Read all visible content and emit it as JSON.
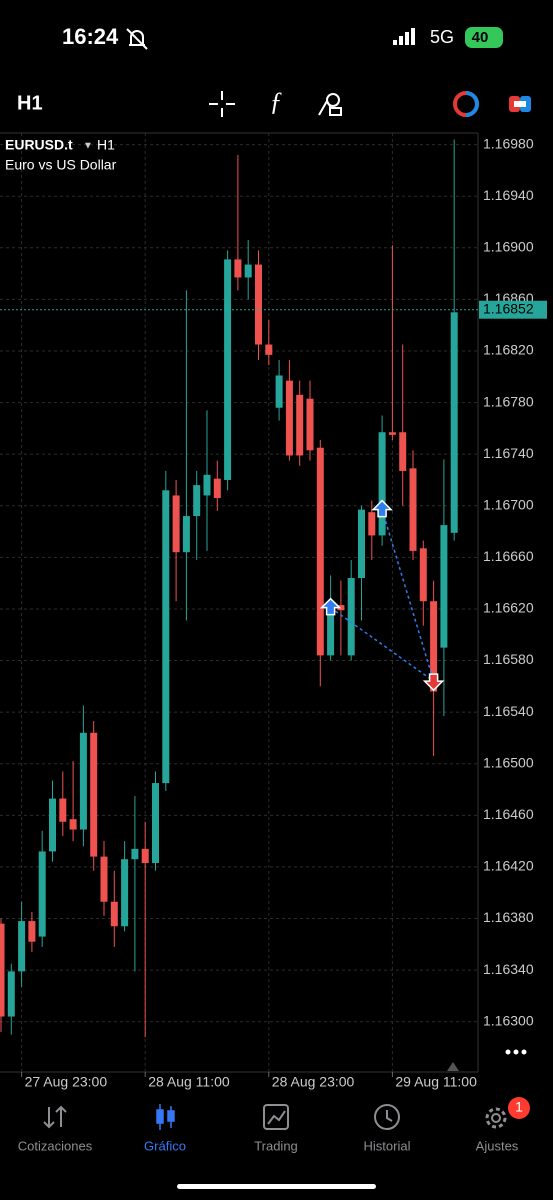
{
  "status_bar": {
    "time": "16:24",
    "network": "5G",
    "battery": "40"
  },
  "toolbar": {
    "timeframe": "H1"
  },
  "chart_data": {
    "type": "candlestick",
    "symbol": "EURUSD.t",
    "timeframe": "H1",
    "description": "Euro vs US Dollar",
    "categories": [
      null,
      null,
      "27 Aug 23:00",
      null,
      null,
      null,
      null,
      null,
      null,
      null,
      null,
      null,
      null,
      null,
      "28 Aug 11:00",
      null,
      null,
      null,
      null,
      null,
      null,
      null,
      null,
      null,
      null,
      null,
      "28 Aug 23:00",
      null,
      null,
      null,
      null,
      null,
      null,
      null,
      null,
      null,
      null,
      null,
      "29 Aug 11:00",
      null,
      null,
      null,
      null,
      null,
      null
    ],
    "open": [
      1.16376,
      1.16304,
      1.16339,
      1.16378,
      1.16366,
      1.16432,
      1.16473,
      1.16457,
      1.16449,
      1.16524,
      1.16428,
      1.16393,
      1.16374,
      1.16426,
      1.16434,
      1.16423,
      1.16485,
      1.16708,
      1.16664,
      1.16692,
      1.16708,
      1.16721,
      1.1672,
      1.16891,
      1.16877,
      1.16887,
      1.16825,
      1.16776,
      1.16797,
      1.16786,
      1.16783,
      1.16745,
      1.16584,
      1.16623,
      1.16584,
      1.16644,
      1.16695,
      1.16677,
      1.16757,
      1.16757,
      1.16729,
      1.16667,
      1.16626,
      1.1659,
      1.16679
    ],
    "high": [
      1.1638,
      1.16345,
      1.16393,
      1.16385,
      1.16448,
      1.16487,
      1.16494,
      1.16502,
      1.16545,
      1.16533,
      1.1644,
      1.16417,
      1.1644,
      1.16475,
      1.16455,
      1.16494,
      1.16727,
      1.1672,
      1.16867,
      1.16727,
      1.16774,
      1.16735,
      1.16898,
      1.16972,
      1.16906,
      1.16898,
      1.16844,
      1.16813,
      1.16813,
      1.16797,
      1.16797,
      1.16751,
      1.16646,
      1.16642,
      1.16658,
      1.167,
      1.16704,
      1.1677,
      1.16902,
      1.16825,
      1.16743,
      1.16673,
      1.16642,
      1.16736,
      1.16984
    ],
    "low": [
      1.16292,
      1.1629,
      1.16327,
      1.16354,
      1.16358,
      1.16424,
      1.16444,
      1.1644,
      1.16436,
      1.16417,
      1.16382,
      1.16358,
      1.1637,
      1.16339,
      1.16288,
      1.16417,
      1.16479,
      1.16626,
      1.16611,
      1.16658,
      1.16665,
      1.16696,
      1.16712,
      1.16867,
      1.1686,
      1.16813,
      1.16809,
      1.16766,
      1.16735,
      1.16731,
      1.16735,
      1.1656,
      1.1658,
      1.16584,
      1.1658,
      1.16611,
      1.16658,
      1.16669,
      1.16751,
      1.167,
      1.16658,
      1.16607,
      1.16506,
      1.16537,
      1.16673
    ],
    "close": [
      1.16304,
      1.16339,
      1.16378,
      1.16362,
      1.16432,
      1.16473,
      1.16455,
      1.16449,
      1.16524,
      1.16428,
      1.16393,
      1.16374,
      1.16426,
      1.16434,
      1.16423,
      1.16485,
      1.16712,
      1.16664,
      1.16692,
      1.16716,
      1.16724,
      1.16706,
      1.16891,
      1.16877,
      1.16887,
      1.16825,
      1.16817,
      1.16801,
      1.16739,
      1.16739,
      1.16743,
      1.16584,
      1.16623,
      1.16619,
      1.16644,
      1.16697,
      1.16677,
      1.16757,
      1.16755,
      1.16727,
      1.16665,
      1.16626,
      1.16556,
      1.16685,
      1.1685
    ],
    "up_color": "#26a69a",
    "down_color": "#ef5350",
    "ylim": [
      1.16261,
      1.16989
    ],
    "yticks": [
      {
        "value": 1.1698,
        "label": "1.16980"
      },
      {
        "value": 1.1694,
        "label": "1.16940"
      },
      {
        "value": 1.169,
        "label": "1.16900"
      },
      {
        "value": 1.1686,
        "label": "1.16860"
      },
      {
        "value": 1.1682,
        "label": "1.16820"
      },
      {
        "value": 1.1678,
        "label": "1.16780"
      },
      {
        "value": 1.1674,
        "label": "1.16740"
      },
      {
        "value": 1.167,
        "label": "1.16700"
      },
      {
        "value": 1.1666,
        "label": "1.16660"
      },
      {
        "value": 1.1662,
        "label": "1.16620"
      },
      {
        "value": 1.1658,
        "label": "1.16580"
      },
      {
        "value": 1.1654,
        "label": "1.16540"
      },
      {
        "value": 1.165,
        "label": "1.16500"
      },
      {
        "value": 1.1646,
        "label": "1.16460"
      },
      {
        "value": 1.1642,
        "label": "1.16420"
      },
      {
        "value": 1.1638,
        "label": "1.16380"
      },
      {
        "value": 1.1634,
        "label": "1.16340"
      },
      {
        "value": 1.163,
        "label": "1.16300"
      }
    ],
    "grid": true,
    "current_price": 1.16852,
    "trades": [
      {
        "side": "buy",
        "index": 32,
        "price": 1.16621
      },
      {
        "side": "buy",
        "index": 37,
        "price": 1.16697
      },
      {
        "side": "sell",
        "index": 42,
        "price": 1.16564
      }
    ]
  },
  "nav": {
    "items": [
      "Cotizaciones",
      "Gráfico",
      "Trading",
      "Historial",
      "Ajustes"
    ],
    "active": 1,
    "badge": "1"
  }
}
